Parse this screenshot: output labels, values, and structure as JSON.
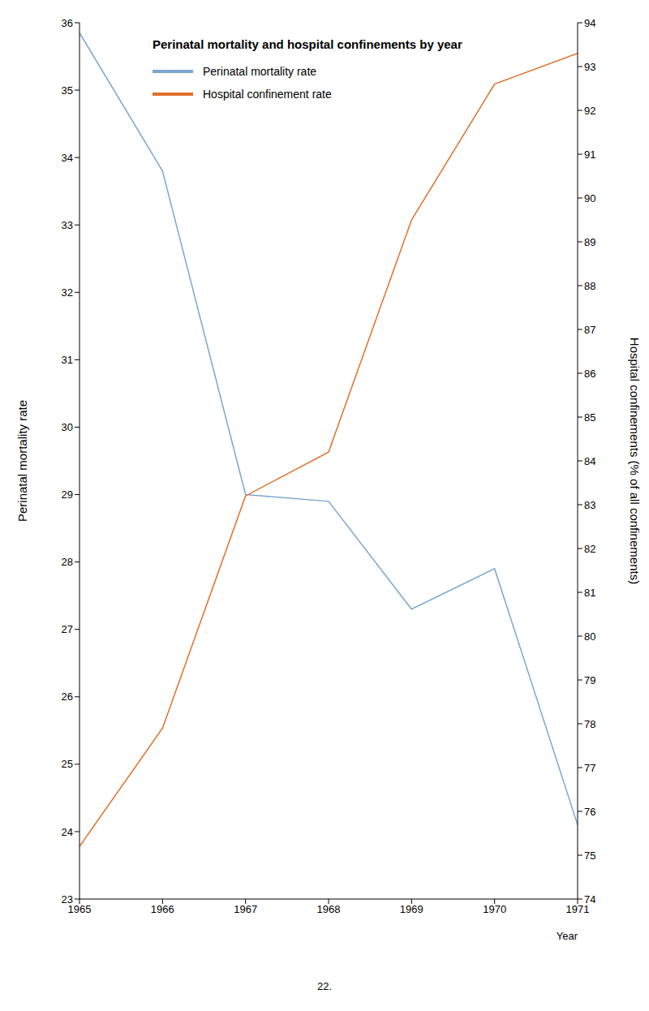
{
  "chart_data": {
    "type": "line",
    "title": "Perinatal mortality and hospital confinements by year",
    "x": [
      1965,
      1966,
      1967,
      1968,
      1969,
      1970,
      1971
    ],
    "x_label": "Year",
    "y_label": "Perinatal mortality rate",
    "y2_label": "Hospital confinements (% of all confinements)",
    "series": [
      {
        "name": "Perinatal mortality rate",
        "color": "#7aa7cf",
        "values": [
          35.85,
          33.8,
          29.0,
          28.9,
          27.3,
          27.9,
          24.1
        ]
      },
      {
        "name": "Hospital confinement rate",
        "color": "#e0702a",
        "axis": "y2",
        "values": [
          75.2,
          77.9,
          83.2,
          84.2,
          89.5,
          92.6,
          93.3
        ]
      }
    ],
    "xlim": [
      1965,
      1971
    ],
    "xticks": [
      1965,
      1966,
      1967,
      1968,
      1969,
      1970,
      1971
    ],
    "ylim": [
      23,
      36
    ],
    "yticks": [
      23,
      24,
      25,
      26,
      27,
      28,
      29,
      30,
      31,
      32,
      33,
      34,
      35,
      36
    ],
    "y2lim": [
      74,
      94
    ],
    "y2ticks": [
      74,
      75,
      76,
      77,
      78,
      79,
      80,
      81,
      82,
      83,
      84,
      85,
      86,
      87,
      88,
      89,
      90,
      91,
      92,
      93,
      94
    ],
    "grid": false,
    "legend": "upper left",
    "page_number": "22."
  }
}
